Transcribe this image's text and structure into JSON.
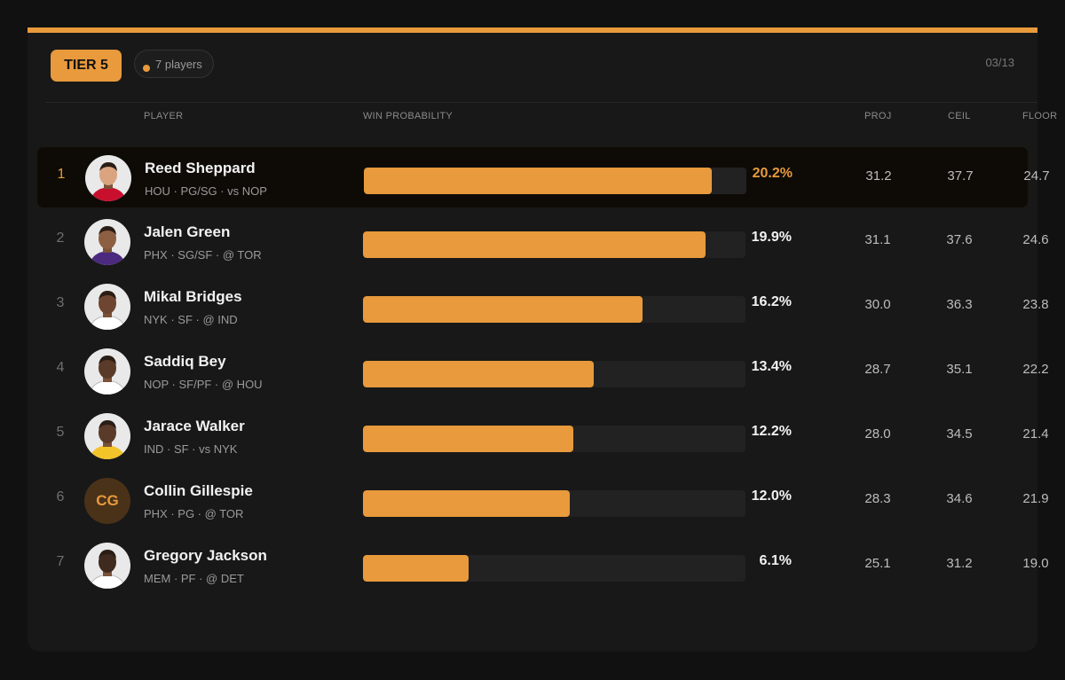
{
  "tier": {
    "label": "TIER 5",
    "count_label": "7 players",
    "date": "03/13"
  },
  "columns": {
    "player": "PLAYER",
    "win_probability": "WIN PROBABILITY",
    "proj": "PROJ",
    "ceil": "CEIL",
    "floor": "FLOOR"
  },
  "colors": {
    "accent": "#e89a3c",
    "track": "#222222",
    "background": "#111111",
    "card": "#181818"
  },
  "players": [
    {
      "rank": "1",
      "name": "Reed Sheppard",
      "meta": "HOU · PG/SG · vs NOP",
      "win_pct": "20.2%",
      "win_value": 20.2,
      "proj": "31.2",
      "ceil": "37.7",
      "floor": "24.7",
      "avatar": "headshot",
      "highlight": true
    },
    {
      "rank": "2",
      "name": "Jalen Green",
      "meta": "PHX · SG/SF · @ TOR",
      "win_pct": "19.9%",
      "win_value": 19.9,
      "proj": "31.1",
      "ceil": "37.6",
      "floor": "24.6",
      "avatar": "headshot"
    },
    {
      "rank": "3",
      "name": "Mikal Bridges",
      "meta": "NYK · SF · @ IND",
      "win_pct": "16.2%",
      "win_value": 16.2,
      "proj": "30.0",
      "ceil": "36.3",
      "floor": "23.8",
      "avatar": "headshot"
    },
    {
      "rank": "4",
      "name": "Saddiq Bey",
      "meta": "NOP · SF/PF · @ HOU",
      "win_pct": "13.4%",
      "win_value": 13.4,
      "proj": "28.7",
      "ceil": "35.1",
      "floor": "22.2",
      "avatar": "headshot"
    },
    {
      "rank": "5",
      "name": "Jarace Walker",
      "meta": "IND · SF · vs NYK",
      "win_pct": "12.2%",
      "win_value": 12.2,
      "proj": "28.0",
      "ceil": "34.5",
      "floor": "21.4",
      "avatar": "headshot"
    },
    {
      "rank": "6",
      "name": "Collin Gillespie",
      "meta": "PHX · PG · @ TOR",
      "win_pct": "12.0%",
      "win_value": 12.0,
      "proj": "28.3",
      "ceil": "34.6",
      "floor": "21.9",
      "avatar": "initials",
      "initials": "CG"
    },
    {
      "rank": "7",
      "name": "Gregory Jackson",
      "meta": "MEM · PF · @ DET",
      "win_pct": "6.1%",
      "win_value": 6.1,
      "proj": "25.1",
      "ceil": "31.2",
      "floor": "19.0",
      "avatar": "headshot"
    }
  ],
  "bar_scale_max_pct": 22.2
}
